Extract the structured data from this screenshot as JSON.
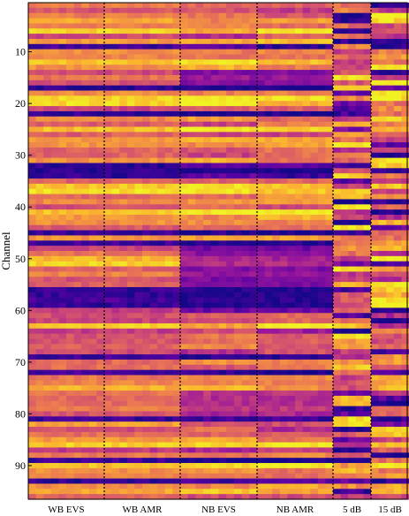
{
  "chart_data": {
    "type": "heatmap",
    "title": "",
    "xlabel": "",
    "ylabel": "Channel",
    "x_categories": [
      "WB EVS",
      "WB AMR",
      "NB EVS",
      "NB AMR",
      "5 dB",
      "15 dB"
    ],
    "x_subcolumns": [
      10,
      10,
      10,
      10,
      5,
      5
    ],
    "y_range": [
      1,
      96
    ],
    "y_ticks": [
      10,
      20,
      30,
      40,
      50,
      60,
      70,
      80,
      90
    ],
    "colormap": "plasma",
    "colormap_stops": [
      "#0d0887",
      "#5b02a3",
      "#9a179b",
      "#cb4678",
      "#eb7852",
      "#fbb32f",
      "#f0f921"
    ],
    "separator_style": "dotted vertical lines between groups",
    "values_description": "cell intensities on a 0-1 scale; rows = channels 1-96, columns = conditions"
  }
}
